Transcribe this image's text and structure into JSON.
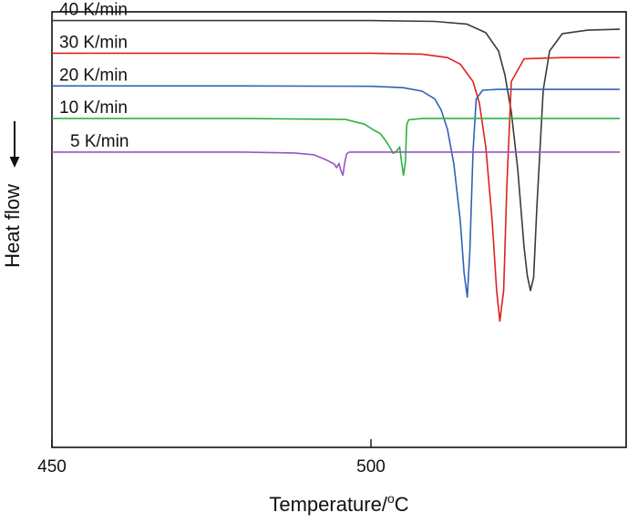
{
  "chart_data": {
    "type": "line",
    "xlabel": "Temperature/",
    "xlabel_unit_sup": "o",
    "xlabel_unit": "C",
    "ylabel": "Heat flow",
    "xlim": [
      450,
      540
    ],
    "ylim": [
      0,
      10
    ],
    "xticks": [
      450,
      500
    ],
    "grid": false,
    "colors": {
      "40 K/min": "#3a3a3a",
      "30 K/min": "#e02020",
      "20 K/min": "#2f62b8",
      "10 K/min": "#2fb040",
      "5 K/min": "#9a55c0"
    },
    "series": [
      {
        "name": "40 K/min",
        "x": [
          450,
          480,
          500,
          510,
          515,
          518,
          520,
          521,
          522,
          523,
          524,
          524.5,
          525,
          525.5,
          526,
          527,
          528,
          530,
          534,
          539
        ],
        "y": [
          9.8,
          9.8,
          9.8,
          9.78,
          9.72,
          9.52,
          9.1,
          8.55,
          7.7,
          6.4,
          4.6,
          3.95,
          3.6,
          3.9,
          5.5,
          8.2,
          9.1,
          9.5,
          9.58,
          9.6
        ]
      },
      {
        "name": "30 K/min",
        "x": [
          450,
          480,
          500,
          508,
          512,
          514,
          516,
          517,
          518,
          519,
          519.7,
          520.2,
          520.8,
          521.3,
          522,
          524,
          530,
          539
        ],
        "y": [
          9.05,
          9.05,
          9.05,
          9.03,
          8.95,
          8.8,
          8.4,
          7.9,
          6.9,
          5.2,
          3.6,
          2.9,
          3.6,
          6.0,
          8.4,
          8.92,
          8.95,
          8.95
        ]
      },
      {
        "name": "20 K/min",
        "x": [
          450,
          480,
          500,
          505,
          508,
          510,
          511,
          512,
          513,
          514,
          514.6,
          515.1,
          515.5,
          516,
          516.5,
          517.5,
          520,
          539
        ],
        "y": [
          8.3,
          8.3,
          8.29,
          8.26,
          8.18,
          8.0,
          7.75,
          7.3,
          6.5,
          5.2,
          4.0,
          3.45,
          4.5,
          6.8,
          8.0,
          8.2,
          8.22,
          8.22
        ]
      },
      {
        "name": "10 K/min",
        "x": [
          450,
          480,
          496,
          499,
          500.5,
          501.5,
          502.5,
          503.5,
          504,
          504.5,
          504.8,
          505.1,
          505.4,
          505.6,
          505.9,
          508,
          539
        ],
        "y": [
          7.55,
          7.55,
          7.53,
          7.42,
          7.28,
          7.2,
          7.0,
          6.75,
          6.8,
          6.9,
          6.55,
          6.25,
          6.55,
          7.4,
          7.52,
          7.55,
          7.55
        ]
      },
      {
        "name": "5 K/min",
        "x": [
          450,
          480,
          488,
          491,
          493,
          494.3,
          494.6,
          495,
          495.3,
          495.6,
          495.9,
          496.2,
          496.6,
          500,
          539
        ],
        "y": [
          6.78,
          6.78,
          6.76,
          6.72,
          6.6,
          6.5,
          6.42,
          6.52,
          6.35,
          6.25,
          6.55,
          6.74,
          6.78,
          6.78,
          6.78
        ]
      }
    ]
  }
}
